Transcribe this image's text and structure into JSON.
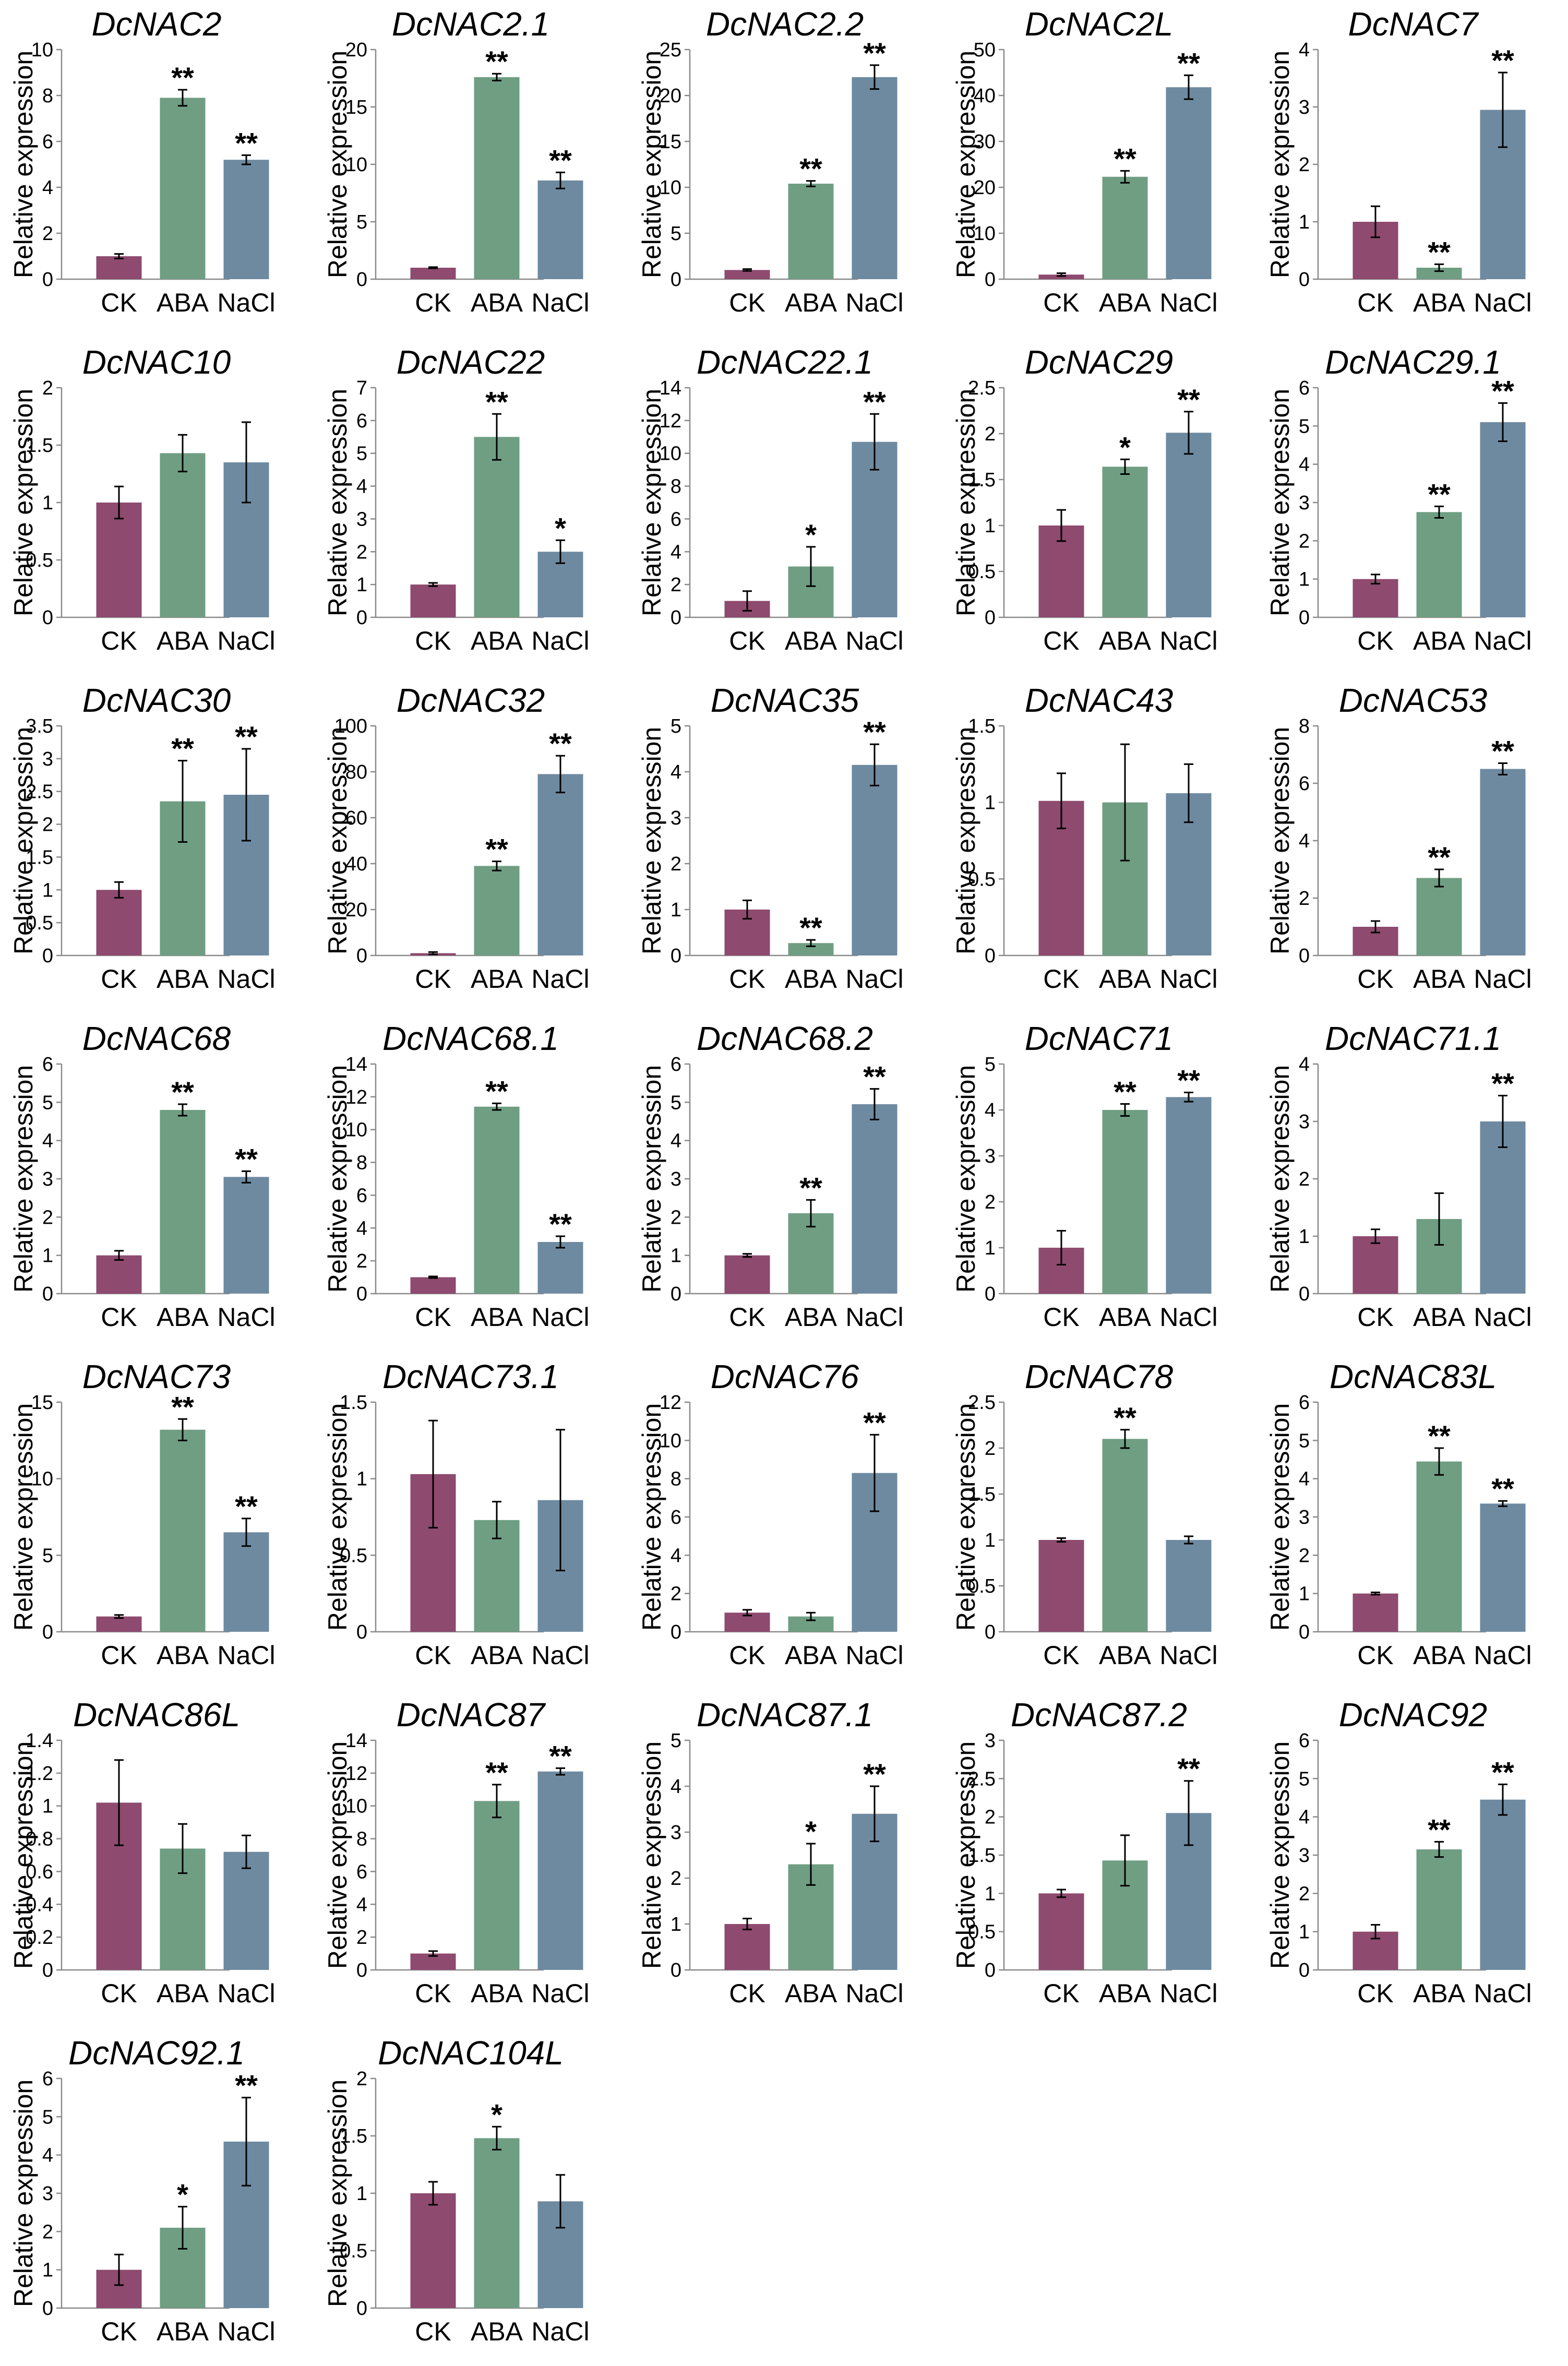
{
  "chart_data": [
    {
      "type": "bar",
      "title": "DcNAC2",
      "ylabel": "Relative expression",
      "ylim": [
        0,
        10
      ],
      "ticks": [
        0,
        2,
        4,
        6,
        8,
        10
      ],
      "categories": [
        "CK",
        "ABA",
        "NaCl"
      ],
      "values": [
        1,
        7.9,
        5.2
      ],
      "errors": [
        0.1,
        0.35,
        0.2
      ],
      "sig": [
        "",
        "**",
        "**"
      ]
    },
    {
      "type": "bar",
      "title": "DcNAC2.1",
      "ylabel": "Relative expression",
      "ylim": [
        0,
        20
      ],
      "ticks": [
        0,
        5,
        10,
        15,
        20
      ],
      "categories": [
        "CK",
        "ABA",
        "NaCl"
      ],
      "values": [
        1,
        17.6,
        8.6
      ],
      "errors": [
        0.05,
        0.3,
        0.7
      ],
      "sig": [
        "",
        "**",
        "**"
      ]
    },
    {
      "type": "bar",
      "title": "DcNAC2.2",
      "ylabel": "Relative expression",
      "ylim": [
        0,
        25
      ],
      "ticks": [
        0,
        5,
        10,
        15,
        20,
        25
      ],
      "categories": [
        "CK",
        "ABA",
        "NaCl"
      ],
      "values": [
        1,
        10.4,
        22
      ],
      "errors": [
        0.1,
        0.3,
        1.3
      ],
      "sig": [
        "",
        "**",
        "**"
      ]
    },
    {
      "type": "bar",
      "title": "DcNAC2L",
      "ylabel": "Relative expression",
      "ylim": [
        0,
        50
      ],
      "ticks": [
        0,
        10,
        20,
        30,
        40,
        50
      ],
      "categories": [
        "CK",
        "ABA",
        "NaCl"
      ],
      "values": [
        1,
        22.3,
        41.8
      ],
      "errors": [
        0.3,
        1.3,
        2.6
      ],
      "sig": [
        "",
        "**",
        "**"
      ]
    },
    {
      "type": "bar",
      "title": "DcNAC7",
      "ylabel": "Relative expression",
      "ylim": [
        0,
        4
      ],
      "ticks": [
        0,
        1,
        2,
        3,
        4
      ],
      "categories": [
        "CK",
        "ABA",
        "NaCl"
      ],
      "values": [
        1,
        0.2,
        2.95
      ],
      "errors": [
        0.27,
        0.06,
        0.65
      ],
      "sig": [
        "",
        "**",
        "**"
      ]
    },
    {
      "type": "bar",
      "title": "DcNAC10",
      "ylabel": "Relative expression",
      "ylim": [
        0,
        2
      ],
      "ticks": [
        0,
        0.5,
        1,
        1.5,
        2
      ],
      "categories": [
        "CK",
        "ABA",
        "NaCl"
      ],
      "values": [
        1,
        1.43,
        1.35
      ],
      "errors": [
        0.14,
        0.16,
        0.35
      ],
      "sig": [
        "",
        "",
        ""
      ]
    },
    {
      "type": "bar",
      "title": "DcNAC22",
      "ylabel": "Relative expression",
      "ylim": [
        0,
        7
      ],
      "ticks": [
        0,
        1,
        2,
        3,
        4,
        5,
        6,
        7
      ],
      "categories": [
        "CK",
        "ABA",
        "NaCl"
      ],
      "values": [
        1,
        5.5,
        2
      ],
      "errors": [
        0.05,
        0.7,
        0.35
      ],
      "sig": [
        "",
        "**",
        "*"
      ]
    },
    {
      "type": "bar",
      "title": "DcNAC22.1",
      "ylabel": "Relative expression",
      "ylim": [
        0,
        14
      ],
      "ticks": [
        0,
        2,
        4,
        6,
        8,
        10,
        12,
        14
      ],
      "categories": [
        "CK",
        "ABA",
        "NaCl"
      ],
      "values": [
        1,
        3.1,
        10.7
      ],
      "errors": [
        0.6,
        1.2,
        1.7
      ],
      "sig": [
        "",
        "*",
        "**"
      ]
    },
    {
      "type": "bar",
      "title": "DcNAC29",
      "ylabel": "Relative expression",
      "ylim": [
        0,
        2.5
      ],
      "ticks": [
        0,
        0.5,
        1,
        1.5,
        2,
        2.5
      ],
      "categories": [
        "CK",
        "ABA",
        "NaCl"
      ],
      "values": [
        1,
        1.64,
        2.01
      ],
      "errors": [
        0.17,
        0.08,
        0.23
      ],
      "sig": [
        "",
        "*",
        "**"
      ]
    },
    {
      "type": "bar",
      "title": "DcNAC29.1",
      "ylabel": "Relative expression",
      "ylim": [
        0,
        6
      ],
      "ticks": [
        0,
        1,
        2,
        3,
        4,
        5,
        6
      ],
      "categories": [
        "CK",
        "ABA",
        "NaCl"
      ],
      "values": [
        1,
        2.75,
        5.1
      ],
      "errors": [
        0.12,
        0.15,
        0.5
      ],
      "sig": [
        "",
        "**",
        "**"
      ]
    },
    {
      "type": "bar",
      "title": "DcNAC30",
      "ylabel": "Relative expression",
      "ylim": [
        0,
        3.5
      ],
      "ticks": [
        0,
        0.5,
        1,
        1.5,
        2,
        2.5,
        3,
        3.5
      ],
      "categories": [
        "CK",
        "ABA",
        "NaCl"
      ],
      "values": [
        1,
        2.35,
        2.45
      ],
      "errors": [
        0.12,
        0.62,
        0.7
      ],
      "sig": [
        "",
        "**",
        "**"
      ]
    },
    {
      "type": "bar",
      "title": "DcNAC32",
      "ylabel": "Relative expression",
      "ylim": [
        0,
        100
      ],
      "ticks": [
        0,
        20,
        40,
        60,
        80,
        100
      ],
      "categories": [
        "CK",
        "ABA",
        "NaCl"
      ],
      "values": [
        1,
        39,
        79
      ],
      "errors": [
        0.5,
        2,
        8
      ],
      "sig": [
        "",
        "**",
        "**"
      ]
    },
    {
      "type": "bar",
      "title": "DcNAC35",
      "ylabel": "Relative expression",
      "ylim": [
        0,
        5
      ],
      "ticks": [
        0,
        1,
        2,
        3,
        4,
        5
      ],
      "categories": [
        "CK",
        "ABA",
        "NaCl"
      ],
      "values": [
        1,
        0.27,
        4.15
      ],
      "errors": [
        0.2,
        0.07,
        0.45
      ],
      "sig": [
        "",
        "**",
        "**"
      ]
    },
    {
      "type": "bar",
      "title": "DcNAC43",
      "ylabel": "Relative expression",
      "ylim": [
        0,
        1.5
      ],
      "ticks": [
        0,
        0.5,
        1,
        1.5
      ],
      "categories": [
        "CK",
        "ABA",
        "NaCl"
      ],
      "values": [
        1.01,
        1,
        1.06
      ],
      "errors": [
        0.18,
        0.38,
        0.19
      ],
      "sig": [
        "",
        "",
        ""
      ]
    },
    {
      "type": "bar",
      "title": "DcNAC53",
      "ylabel": "Relative expression",
      "ylim": [
        0,
        8
      ],
      "ticks": [
        0,
        2,
        4,
        6,
        8
      ],
      "categories": [
        "CK",
        "ABA",
        "NaCl"
      ],
      "values": [
        1,
        2.7,
        6.5
      ],
      "errors": [
        0.2,
        0.3,
        0.2
      ],
      "sig": [
        "",
        "**",
        "**"
      ]
    },
    {
      "type": "bar",
      "title": "DcNAC68",
      "ylabel": "Relative expression",
      "ylim": [
        0,
        6
      ],
      "ticks": [
        0,
        1,
        2,
        3,
        4,
        5,
        6
      ],
      "categories": [
        "CK",
        "ABA",
        "NaCl"
      ],
      "values": [
        1,
        4.8,
        3.05
      ],
      "errors": [
        0.12,
        0.15,
        0.15
      ],
      "sig": [
        "",
        "**",
        "**"
      ]
    },
    {
      "type": "bar",
      "title": "DcNAC68.1",
      "ylabel": "Relative expression",
      "ylim": [
        0,
        14
      ],
      "ticks": [
        0,
        2,
        4,
        6,
        8,
        10,
        12,
        14
      ],
      "categories": [
        "CK",
        "ABA",
        "NaCl"
      ],
      "values": [
        1,
        11.4,
        3.15
      ],
      "errors": [
        0.05,
        0.2,
        0.35
      ],
      "sig": [
        "",
        "**",
        "**"
      ]
    },
    {
      "type": "bar",
      "title": "DcNAC68.2",
      "ylabel": "Relative expression",
      "ylim": [
        0,
        6
      ],
      "ticks": [
        0,
        1,
        2,
        3,
        4,
        5,
        6
      ],
      "categories": [
        "CK",
        "ABA",
        "NaCl"
      ],
      "values": [
        1,
        2.1,
        4.95
      ],
      "errors": [
        0.04,
        0.35,
        0.4
      ],
      "sig": [
        "",
        "**",
        "**"
      ]
    },
    {
      "type": "bar",
      "title": "DcNAC71",
      "ylabel": "Relative expression",
      "ylim": [
        0,
        5
      ],
      "ticks": [
        0,
        1,
        2,
        3,
        4,
        5
      ],
      "categories": [
        "CK",
        "ABA",
        "NaCl"
      ],
      "values": [
        1,
        4,
        4.28
      ],
      "errors": [
        0.37,
        0.13,
        0.1
      ],
      "sig": [
        "",
        "**",
        "**"
      ]
    },
    {
      "type": "bar",
      "title": "DcNAC71.1",
      "ylabel": "Relative expression",
      "ylim": [
        0,
        4
      ],
      "ticks": [
        0,
        1,
        2,
        3,
        4
      ],
      "categories": [
        "CK",
        "ABA",
        "NaCl"
      ],
      "values": [
        1,
        1.3,
        3
      ],
      "errors": [
        0.12,
        0.45,
        0.45
      ],
      "sig": [
        "",
        "",
        "**"
      ]
    },
    {
      "type": "bar",
      "title": "DcNAC73",
      "ylabel": "Relative expression",
      "ylim": [
        0,
        15
      ],
      "ticks": [
        0,
        5,
        10,
        15
      ],
      "categories": [
        "CK",
        "ABA",
        "NaCl"
      ],
      "values": [
        1,
        13.2,
        6.5
      ],
      "errors": [
        0.1,
        0.7,
        0.9
      ],
      "sig": [
        "",
        "**",
        "**"
      ]
    },
    {
      "type": "bar",
      "title": "DcNAC73.1",
      "ylabel": "Relative expression",
      "ylim": [
        0,
        1.5
      ],
      "ticks": [
        0,
        0.5,
        1,
        1.5
      ],
      "categories": [
        "CK",
        "ABA",
        "NaCl"
      ],
      "values": [
        1.03,
        0.73,
        0.86
      ],
      "errors": [
        0.35,
        0.12,
        0.46
      ],
      "sig": [
        "",
        "",
        ""
      ]
    },
    {
      "type": "bar",
      "title": "DcNAC76",
      "ylabel": "Relative expression",
      "ylim": [
        0,
        12
      ],
      "ticks": [
        0,
        2,
        4,
        6,
        8,
        10,
        12
      ],
      "categories": [
        "CK",
        "ABA",
        "NaCl"
      ],
      "values": [
        1,
        0.8,
        8.3
      ],
      "errors": [
        0.15,
        0.2,
        2
      ],
      "sig": [
        "",
        "",
        "**"
      ]
    },
    {
      "type": "bar",
      "title": "DcNAC78",
      "ylabel": "Relative expression",
      "ylim": [
        0,
        2.5
      ],
      "ticks": [
        0,
        0.5,
        1,
        1.5,
        2,
        2.5
      ],
      "categories": [
        "CK",
        "ABA",
        "NaCl"
      ],
      "values": [
        1,
        2.1,
        1
      ],
      "errors": [
        0.02,
        0.1,
        0.04
      ],
      "sig": [
        "",
        "**",
        ""
      ]
    },
    {
      "type": "bar",
      "title": "DcNAC83L",
      "ylabel": "Relative expression",
      "ylim": [
        0,
        6
      ],
      "ticks": [
        0,
        1,
        2,
        3,
        4,
        5,
        6
      ],
      "categories": [
        "CK",
        "ABA",
        "NaCl"
      ],
      "values": [
        1,
        4.45,
        3.35
      ],
      "errors": [
        0.03,
        0.35,
        0.07
      ],
      "sig": [
        "",
        "**",
        "**"
      ]
    },
    {
      "type": "bar",
      "title": "DcNAC86L",
      "ylabel": "Relative expression",
      "ylim": [
        0,
        1.4
      ],
      "ticks": [
        0,
        0.2,
        0.4,
        0.6,
        0.8,
        1,
        1.2,
        1.4
      ],
      "categories": [
        "CK",
        "ABA",
        "NaCl"
      ],
      "values": [
        1.02,
        0.74,
        0.72
      ],
      "errors": [
        0.26,
        0.15,
        0.1
      ],
      "sig": [
        "",
        "",
        ""
      ]
    },
    {
      "type": "bar",
      "title": "DcNAC87",
      "ylabel": "Relative expression",
      "ylim": [
        0,
        14
      ],
      "ticks": [
        0,
        2,
        4,
        6,
        8,
        10,
        12,
        14
      ],
      "categories": [
        "CK",
        "ABA",
        "NaCl"
      ],
      "values": [
        1,
        10.3,
        12.1
      ],
      "errors": [
        0.15,
        1,
        0.2
      ],
      "sig": [
        "",
        "**",
        "**"
      ]
    },
    {
      "type": "bar",
      "title": "DcNAC87.1",
      "ylabel": "Relative expression",
      "ylim": [
        0,
        5
      ],
      "ticks": [
        0,
        1,
        2,
        3,
        4,
        5
      ],
      "categories": [
        "CK",
        "ABA",
        "NaCl"
      ],
      "values": [
        1,
        2.3,
        3.4
      ],
      "errors": [
        0.12,
        0.45,
        0.6
      ],
      "sig": [
        "",
        "*",
        "**"
      ]
    },
    {
      "type": "bar",
      "title": "DcNAC87.2",
      "ylabel": "Relative expression",
      "ylim": [
        0,
        3
      ],
      "ticks": [
        0,
        0.5,
        1,
        1.5,
        2,
        2.5,
        3
      ],
      "categories": [
        "CK",
        "ABA",
        "NaCl"
      ],
      "values": [
        1,
        1.43,
        2.05
      ],
      "errors": [
        0.05,
        0.33,
        0.42
      ],
      "sig": [
        "",
        "",
        "**"
      ]
    },
    {
      "type": "bar",
      "title": "DcNAC92",
      "ylabel": "Relative expression",
      "ylim": [
        0,
        6
      ],
      "ticks": [
        0,
        1,
        2,
        3,
        4,
        5,
        6
      ],
      "categories": [
        "CK",
        "ABA",
        "NaCl"
      ],
      "values": [
        1,
        3.15,
        4.45
      ],
      "errors": [
        0.18,
        0.2,
        0.4
      ],
      "sig": [
        "",
        "**",
        "**"
      ]
    },
    {
      "type": "bar",
      "title": "DcNAC92.1",
      "ylabel": "Relative expression",
      "ylim": [
        0,
        6
      ],
      "ticks": [
        0,
        1,
        2,
        3,
        4,
        5,
        6
      ],
      "categories": [
        "CK",
        "ABA",
        "NaCl"
      ],
      "values": [
        1,
        2.1,
        4.35
      ],
      "errors": [
        0.4,
        0.55,
        1.15
      ],
      "sig": [
        "",
        "*",
        "**"
      ]
    },
    {
      "type": "bar",
      "title": "DcNAC104L",
      "ylabel": "Relative expression",
      "ylim": [
        0,
        2
      ],
      "ticks": [
        0,
        0.5,
        1,
        1.5,
        2
      ],
      "categories": [
        "CK",
        "ABA",
        "NaCl"
      ],
      "values": [
        1,
        1.48,
        0.93
      ],
      "errors": [
        0.1,
        0.1,
        0.23
      ],
      "sig": [
        "",
        "*",
        ""
      ]
    }
  ],
  "colors": {
    "CK": "#8e4a6f",
    "ABA": "#6f9e83",
    "NaCl": "#6e8aa0",
    "axis": "#8a8a8a",
    "text": "#000000"
  }
}
